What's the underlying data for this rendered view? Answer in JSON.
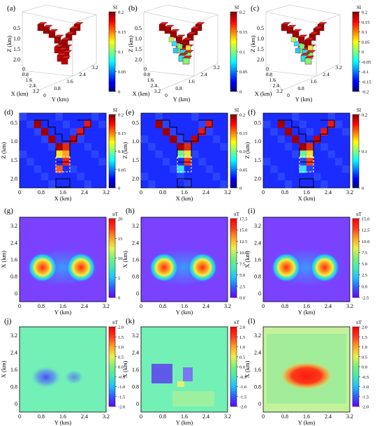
{
  "colors": {
    "jet": [
      "#00007f",
      "#0000ff",
      "#007fff",
      "#00ffff",
      "#7fff7f",
      "#ffff00",
      "#ff7f00",
      "#ff0000",
      "#7f0000"
    ],
    "magnetic": [
      "#6a00ff",
      "#2f5bff",
      "#1fbfff",
      "#43e8b5",
      "#7af07a",
      "#e7f24a",
      "#ffa320",
      "#ff3a1e",
      "#ff0000"
    ],
    "block_dark_red": "#a00000",
    "frame": "#000000"
  },
  "rows": {
    "model3d": {
      "panels": [
        {
          "label": "(a)",
          "colorbar": {
            "title": "SI",
            "ticks": [
              "0.2",
              "0.15",
              "0.1",
              "0.05",
              "0"
            ]
          }
        },
        {
          "label": "(b)",
          "colorbar": {
            "title": "SI",
            "ticks": [
              "0.2",
              "0.15",
              "0.1",
              "0.05",
              "0"
            ]
          }
        },
        {
          "label": "(c)",
          "colorbar": {
            "title": "SI",
            "ticks": [
              "0.2",
              "0.15",
              "0.1",
              "0.05",
              "0",
              "-0.05",
              "-0.1",
              "-0.15",
              "-0.2"
            ]
          }
        }
      ],
      "z_axis": {
        "label": "Z (km)",
        "ticks": [
          "0.5",
          "1.0",
          "1.5",
          "2.0"
        ]
      },
      "x_axis": {
        "label": "X (km)",
        "ticks": [
          "0",
          "0.8",
          "1.6",
          "2.4",
          "3.2"
        ]
      },
      "y_axis": {
        "label": "Y (km)",
        "ticks": [
          "0",
          "0.8",
          "1.6",
          "2.4",
          "3.2"
        ]
      }
    },
    "section": {
      "panels": [
        {
          "label": "(d)",
          "colorbar": {
            "title": "SI",
            "ticks": [
              "0.2",
              "0.15",
              "0.1",
              "0.05",
              "0"
            ]
          }
        },
        {
          "label": "(e)",
          "colorbar": {
            "title": "SI",
            "ticks": [
              "0.2",
              "0.15",
              "0.1",
              "0.05",
              "0"
            ]
          }
        },
        {
          "label": "(f)",
          "colorbar": {
            "title": "SI",
            "ticks": [
              "0.2",
              "0.1",
              "0"
            ]
          }
        }
      ],
      "y_axis": {
        "label": "Z (km)",
        "ticks": [
          "0.5",
          "1.0",
          "1.5",
          "2.0"
        ]
      },
      "x_axis": {
        "label": "X (km)",
        "ticks": [
          "0",
          "0.8",
          "1.6",
          "2.4",
          "3.2"
        ]
      }
    },
    "anomaly": {
      "panels": [
        {
          "label": "(g)",
          "colorbar": {
            "title": "nT",
            "ticks": [
              "20",
              "15",
              "10",
              "5",
              "0"
            ]
          }
        },
        {
          "label": "(h)",
          "colorbar": {
            "title": "nT",
            "ticks": [
              "17.5",
              "15.0",
              "12.5",
              "10.0",
              "7.5",
              "5.0",
              "2.5",
              "0.0"
            ]
          }
        },
        {
          "label": "(i)",
          "colorbar": {
            "title": "nT",
            "ticks": [
              "15.0",
              "12.5",
              "10.0",
              "7.5",
              "5.0",
              "2.5",
              "0.0",
              "-2.5"
            ]
          }
        }
      ],
      "y_axis": {
        "label": "X (km)",
        "ticks": [
          "3.2",
          "2.4",
          "1.6",
          "0.8",
          "0"
        ]
      },
      "x_axis": {
        "label": "Y (km)",
        "ticks": [
          "0",
          "0.8",
          "1.6",
          "2.4",
          "3.2"
        ]
      }
    },
    "residual": {
      "panels": [
        {
          "label": "(j)",
          "colorbar": {
            "title": "nT",
            "ticks": [
              "2.0",
              "1.5",
              "1.0",
              "0.5",
              "0.0",
              "-0.5",
              "-1.0",
              "-1.5",
              "-2.0"
            ]
          }
        },
        {
          "label": "(k)",
          "colorbar": {
            "title": "nT",
            "ticks": [
              "2.0",
              "1.5",
              "1.0",
              "0.5",
              "0.0",
              "-0.5",
              "-1.0",
              "-1.5",
              "-2.0"
            ]
          }
        },
        {
          "label": "(l)",
          "colorbar": {
            "title": "nT",
            "ticks": [
              "2.0",
              "1.5",
              "1.0",
              "0.5",
              "0.0",
              "-0.5",
              "-1.0",
              "-1.5",
              "-2.0"
            ]
          }
        }
      ],
      "y_axis": {
        "label": "X (km)",
        "ticks": [
          "3.2",
          "2.4",
          "1.6",
          "0.8",
          "0"
        ]
      },
      "x_axis": {
        "label": "Y (km)",
        "ticks": [
          "0",
          "0.8",
          "1.6",
          "2.4",
          "3.2"
        ]
      }
    }
  }
}
